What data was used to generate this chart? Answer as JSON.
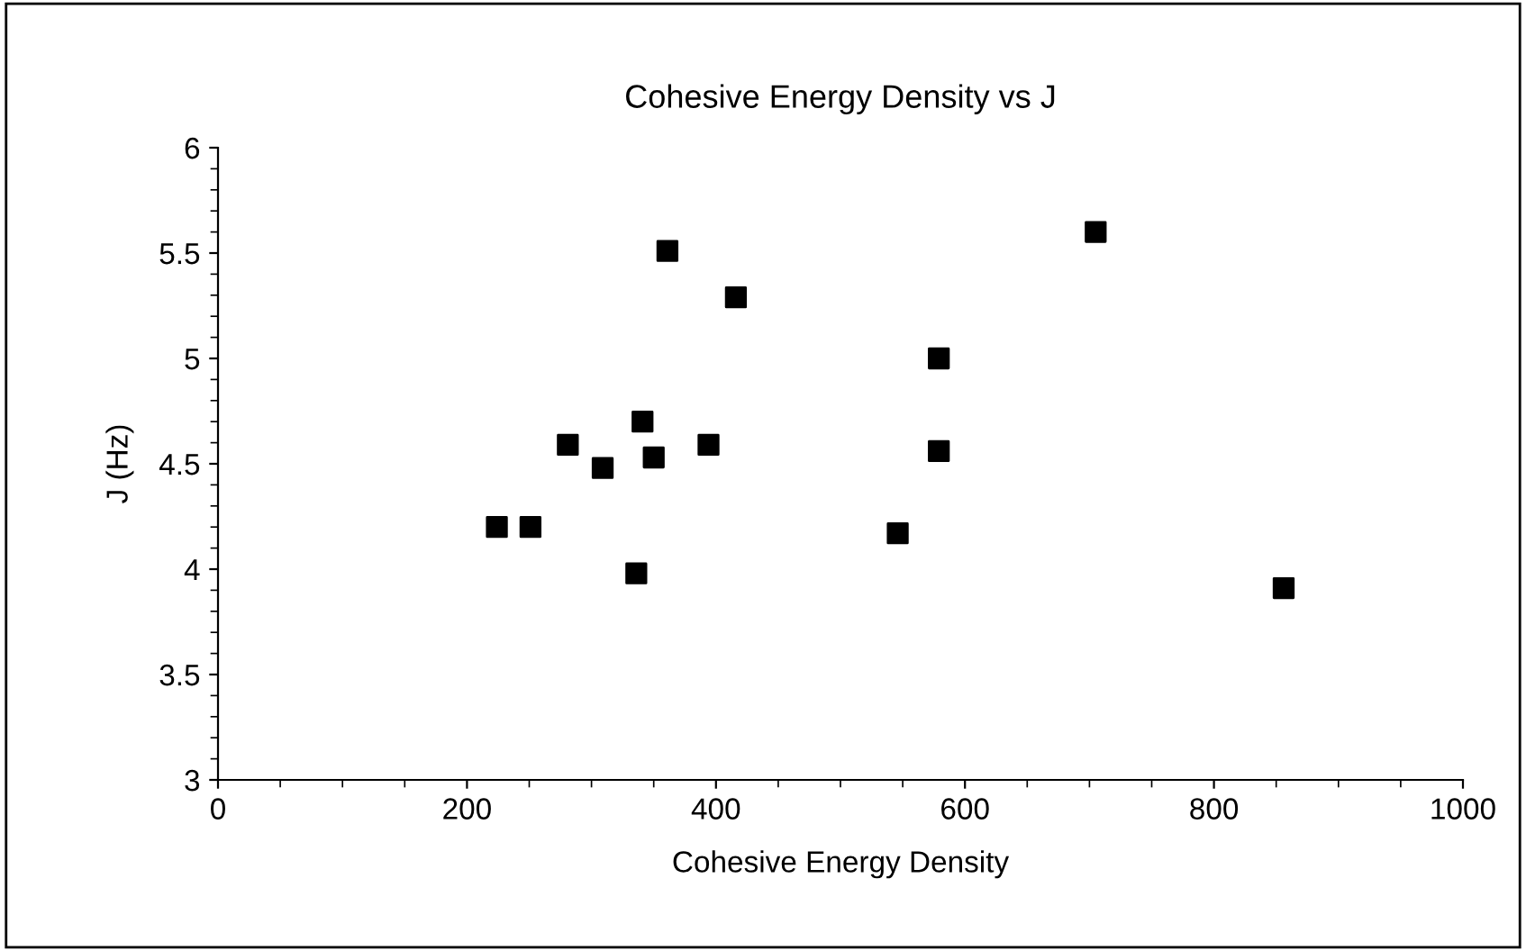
{
  "chart_data": {
    "type": "scatter",
    "title": "Cohesive Energy Density vs J",
    "xlabel": "Cohesive Energy Density",
    "ylabel": "J (Hz)",
    "x": [
      224,
      251,
      281,
      309,
      341,
      336,
      350,
      361,
      394,
      416,
      546,
      579,
      579,
      705,
      856
    ],
    "values": [
      4.2,
      4.2,
      4.59,
      4.48,
      4.7,
      3.98,
      4.53,
      5.51,
      4.59,
      5.29,
      4.17,
      4.56,
      5.0,
      5.6,
      3.91
    ],
    "color": "#000000",
    "marker": "square",
    "grid": false,
    "xlim": [
      0,
      1000
    ],
    "xticks": [
      0,
      200,
      400,
      600,
      800,
      1000
    ],
    "ylim": [
      3,
      6
    ],
    "yticks": [
      3,
      3.5,
      4,
      4.5,
      5,
      5.5,
      6
    ]
  }
}
